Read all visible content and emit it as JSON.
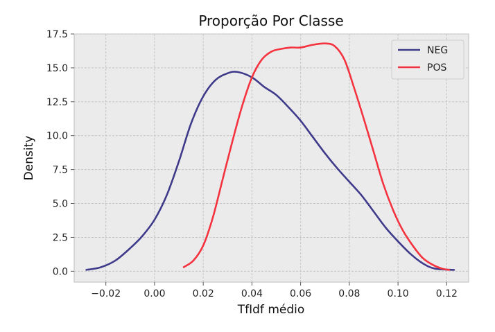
{
  "chart_data": {
    "type": "line",
    "title": "Proporção Por Classe",
    "xlabel": "TfIdf médio",
    "ylabel": "Density",
    "xlim": [
      -0.033,
      0.129
    ],
    "ylim": [
      -0.8,
      17.5
    ],
    "xticks": [
      -0.02,
      0.0,
      0.02,
      0.04,
      0.06,
      0.08,
      0.1,
      0.12
    ],
    "xtick_labels": [
      "−0.02",
      "0.00",
      "0.02",
      "0.04",
      "0.06",
      "0.08",
      "0.10",
      "0.12"
    ],
    "yticks": [
      0.0,
      2.5,
      5.0,
      7.5,
      10.0,
      12.5,
      15.0,
      17.5
    ],
    "ytick_labels": [
      "0.0",
      "2.5",
      "5.0",
      "7.5",
      "10.0",
      "12.5",
      "15.0",
      "17.5"
    ],
    "grid": true,
    "legend_position": "top-right",
    "series": [
      {
        "name": "NEG",
        "color": "#3f3a8a",
        "x": [
          -0.028,
          -0.022,
          -0.016,
          -0.01,
          -0.005,
          0.0,
          0.005,
          0.01,
          0.015,
          0.02,
          0.025,
          0.03,
          0.034,
          0.04,
          0.045,
          0.05,
          0.055,
          0.06,
          0.065,
          0.07,
          0.075,
          0.08,
          0.085,
          0.09,
          0.095,
          0.1,
          0.105,
          0.11,
          0.115,
          0.123
        ],
        "y": [
          0.1,
          0.3,
          0.8,
          1.7,
          2.6,
          3.8,
          5.6,
          8.1,
          10.9,
          12.9,
          14.1,
          14.6,
          14.7,
          14.3,
          13.6,
          13.0,
          12.1,
          11.1,
          9.9,
          8.7,
          7.6,
          6.6,
          5.6,
          4.4,
          3.2,
          2.2,
          1.3,
          0.6,
          0.2,
          0.1
        ]
      },
      {
        "name": "POS",
        "color": "#f5333f",
        "x": [
          0.012,
          0.016,
          0.02,
          0.024,
          0.028,
          0.032,
          0.036,
          0.04,
          0.044,
          0.048,
          0.052,
          0.056,
          0.06,
          0.065,
          0.07,
          0.074,
          0.078,
          0.082,
          0.086,
          0.09,
          0.094,
          0.098,
          0.102,
          0.106,
          0.11,
          0.114,
          0.118,
          0.121
        ],
        "y": [
          0.3,
          0.8,
          1.9,
          4.0,
          6.8,
          9.6,
          12.2,
          14.3,
          15.6,
          16.2,
          16.4,
          16.5,
          16.5,
          16.7,
          16.8,
          16.6,
          15.6,
          13.5,
          11.2,
          8.8,
          6.4,
          4.5,
          3.0,
          1.9,
          1.0,
          0.5,
          0.2,
          0.1
        ]
      }
    ]
  }
}
